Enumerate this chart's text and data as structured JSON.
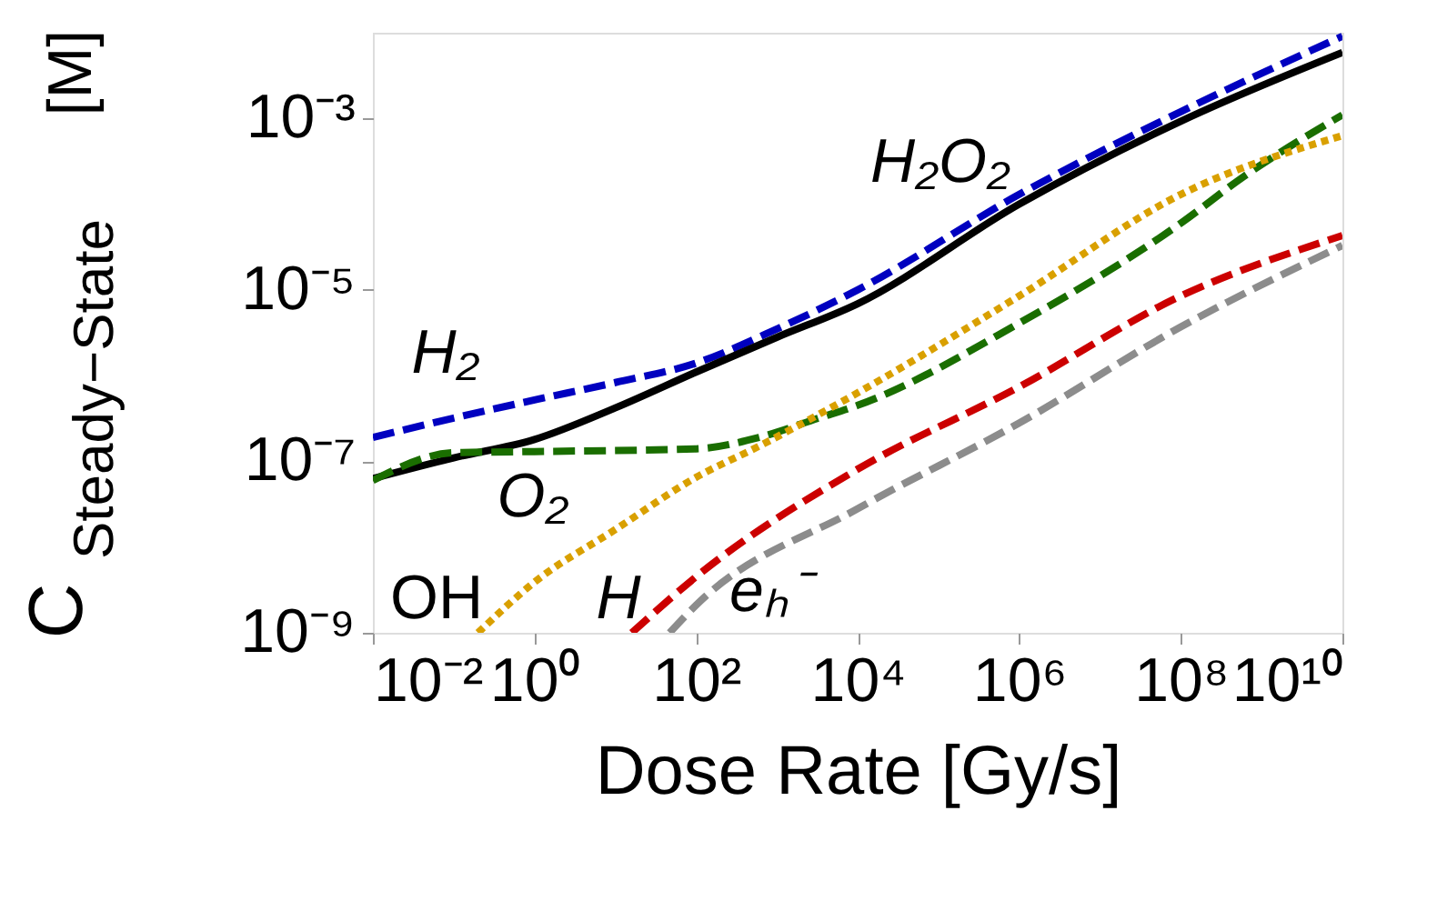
{
  "chart_data": {
    "type": "line",
    "xlabel": "Dose Rate [Gy/s]",
    "ylabel": "C$_{Steady−State}$ [M]",
    "log": "xy",
    "grid": false,
    "xlim": [
      0.01,
      10000000000.0
    ],
    "ylim": [
      1e-09,
      0.01
    ],
    "xticks": [
      {
        "value": 0.01,
        "label": "10⁻²"
      },
      {
        "value": 1,
        "label": "10⁰"
      },
      {
        "value": 100,
        "label": "10²"
      },
      {
        "value": 10000,
        "label": "10⁴"
      },
      {
        "value": 1000000,
        "label": "10⁶"
      },
      {
        "value": 100000000,
        "label": "10⁸"
      },
      {
        "value": 10000000000,
        "label": "10¹⁰"
      }
    ],
    "yticks": [
      {
        "value": 1e-09,
        "label": "10⁻⁹"
      },
      {
        "value": 1e-07,
        "label": "10⁻⁷"
      },
      {
        "value": 1e-05,
        "label": "10⁻⁵"
      },
      {
        "value": 0.001,
        "label": "10⁻³"
      }
    ],
    "series": [
      {
        "name": "H₂",
        "color": "#0000c0",
        "line_style": "dashed",
        "x": [
          0.01,
          0.1,
          1,
          10,
          100,
          1000,
          10000,
          1000000,
          100000000,
          10000000000
        ],
        "values": [
          1.9e-07,
          3.2e-07,
          5.2e-07,
          8.3e-07,
          1.4e-06,
          3.5e-06,
          1e-05,
          0.00013,
          0.0012,
          0.0091
        ]
      },
      {
        "name": "H₂O₂",
        "color": "#000000",
        "line_style": "solid",
        "x": [
          0.01,
          0.1,
          1,
          10,
          100,
          1000,
          10000,
          1000000,
          100000000,
          10000000000
        ],
        "values": [
          6.3e-08,
          1.1e-07,
          1.8e-07,
          4.2e-07,
          1.1e-06,
          2.8e-06,
          6.9e-06,
          0.0001,
          0.00093,
          0.0059
        ]
      },
      {
        "name": "O₂",
        "color": "#1a6e00",
        "line_style": "dashed",
        "x": [
          0.01,
          0.1,
          1,
          100,
          600,
          3300,
          10000,
          1000000,
          100000000,
          600000000,
          10000000000
        ],
        "values": [
          6e-08,
          1.26e-07,
          1.3e-07,
          1.4e-07,
          1.9e-07,
          3.2e-07,
          4.5e-07,
          4.1e-06,
          6e-05,
          0.00021,
          0.0011
        ]
      },
      {
        "name": "OH",
        "color": "#d9a000",
        "line_style": "dotted",
        "x": [
          0.2,
          1,
          10,
          100,
          600,
          10000,
          1000000,
          100000000,
          10000000000
        ],
        "values": [
          1e-09,
          3.9e-09,
          1.6e-08,
          6.5e-08,
          1.5e-07,
          6.3e-07,
          8.5e-06,
          0.00013,
          0.00063
        ]
      },
      {
        "name": "H",
        "color": "#cc0000",
        "line_style": "dashed",
        "x": [
          16,
          100,
          10000,
          1000000,
          100000000,
          10000000000
        ],
        "values": [
          1e-09,
          4.5e-09,
          8.1e-08,
          7.4e-07,
          8.5e-06,
          4.3e-05
        ]
      },
      {
        "name": "eₕ⁻",
        "color": "#8c8c8c",
        "line_style": "dashed",
        "x": [
          47,
          100,
          10000,
          1000000,
          100000000,
          10000000000
        ],
        "values": [
          1e-09,
          2.1e-09,
          2.8e-08,
          2.8e-07,
          3.7e-06,
          3.3e-05
        ]
      }
    ]
  }
}
